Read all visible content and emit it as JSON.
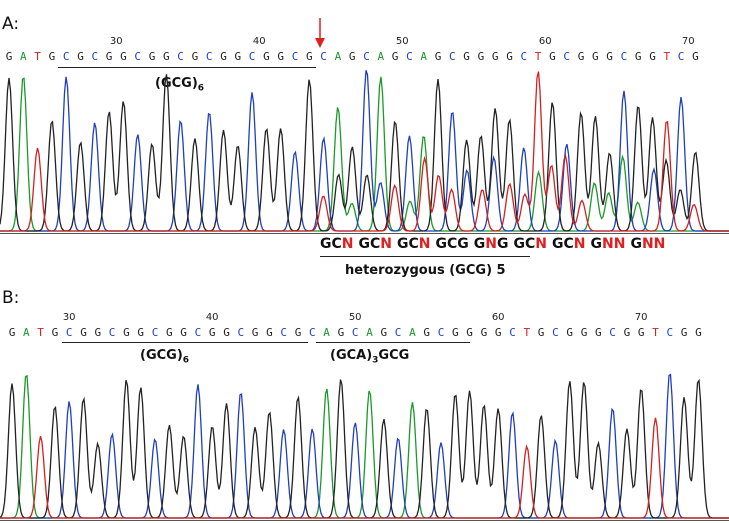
{
  "panels": [
    {
      "label": "A:",
      "sequence": "GATGCGCGGCGGCGCGGCGGCGCAGCAGCAGCGGGGCTGCGGGCGGTCG",
      "ticks": [
        {
          "pos": 30,
          "text": "30"
        },
        {
          "pos": 40,
          "text": "40"
        },
        {
          "pos": 50,
          "text": "50"
        },
        {
          "pos": 60,
          "text": "60"
        },
        {
          "pos": 70,
          "text": "70"
        }
      ],
      "underline_label_1": "(GCG)",
      "underline_label_1_sub": "6",
      "arrow_note": "mutation site",
      "het_codons": [
        "GCN",
        "GCN",
        "GCN",
        "GCG",
        "GNG",
        "GCN",
        "GCN",
        "GNN",
        "GNN"
      ],
      "het_label": "heterozygous (GCG) 5"
    },
    {
      "label": "B:",
      "sequence": "GATGCGGCGGCGGCGGCGGCGCAGCAGCAGCGGGGCTGCGGGCGGTCGG",
      "ticks": [
        {
          "pos": 30,
          "text": "30"
        },
        {
          "pos": 40,
          "text": "40"
        },
        {
          "pos": 50,
          "text": "50"
        },
        {
          "pos": 60,
          "text": "60"
        },
        {
          "pos": 70,
          "text": "70"
        }
      ],
      "underline_label_1": "(GCG)",
      "underline_label_1_sub": "6",
      "underline_label_2": "(GCA)",
      "underline_label_2_sub": "3",
      "underline_label_2_suffix": "GCG"
    }
  ],
  "colors": {
    "A": "#1a9a2a",
    "C": "#1f3fbf",
    "G": "#222222",
    "T": "#d42020",
    "N": "#e02020"
  }
}
